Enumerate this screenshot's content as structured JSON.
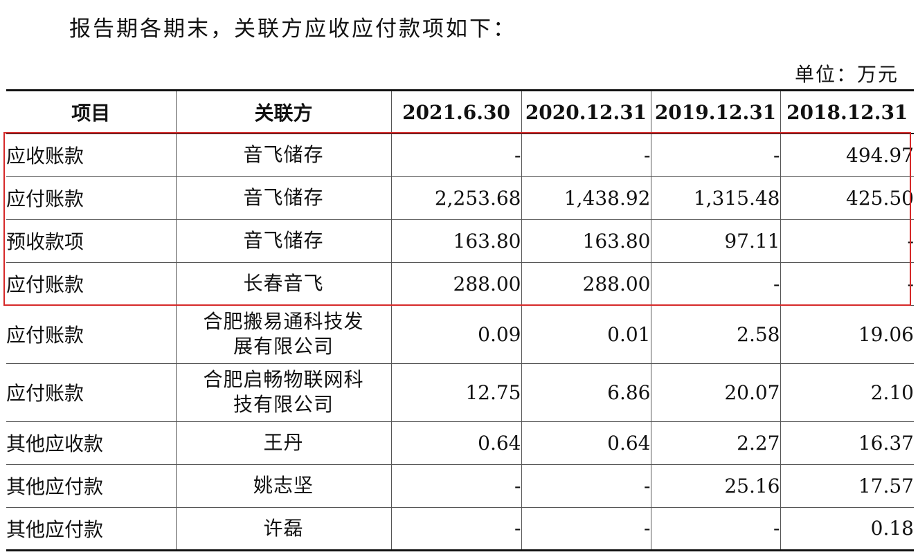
{
  "intro": "报告期各期末，关联方应收应付款项如下：",
  "unit": "单位：万元",
  "table": {
    "headers": [
      "项目",
      "关联方",
      "2021.6.30",
      "2020.12.31",
      "2019.12.31",
      "2018.12.31"
    ],
    "rows": [
      {
        "item": "应收账款",
        "party": "音飞储存",
        "values": [
          "-",
          "-",
          "-",
          "494.97"
        ]
      },
      {
        "item": "应付账款",
        "party": "音飞储存",
        "values": [
          "2,253.68",
          "1,438.92",
          "1,315.48",
          "425.50"
        ]
      },
      {
        "item": "预收款项",
        "party": "音飞储存",
        "values": [
          "163.80",
          "163.80",
          "97.11",
          "-"
        ]
      },
      {
        "item": "应付账款",
        "party": "长春音飞",
        "values": [
          "288.00",
          "288.00",
          "-",
          "-"
        ]
      },
      {
        "item": "应付账款",
        "party": "合肥搬易通科技发展有限公司",
        "values": [
          "0.09",
          "0.01",
          "2.58",
          "19.06"
        ]
      },
      {
        "item": "应付账款",
        "party": "合肥启畅物联网科技有限公司",
        "values": [
          "12.75",
          "6.86",
          "20.07",
          "2.10"
        ]
      },
      {
        "item": "其他应收款",
        "party": "王丹",
        "values": [
          "0.64",
          "0.64",
          "2.27",
          "16.37"
        ]
      },
      {
        "item": "其他应付款",
        "party": "姚志坚",
        "values": [
          "-",
          "-",
          "25.16",
          "17.57"
        ]
      },
      {
        "item": "其他应付款",
        "party": "许磊",
        "values": [
          "-",
          "-",
          "-",
          "0.18"
        ]
      }
    ]
  },
  "highlight": {
    "color": "#d62828"
  }
}
